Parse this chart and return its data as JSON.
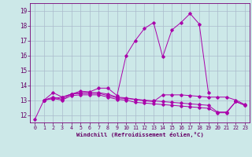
{
  "title": "",
  "xlabel": "Windchill (Refroidissement éolien,°C)",
  "ylabel": "",
  "bg_color": "#cce8e8",
  "line_color": "#aa00aa",
  "grid_color": "#aabbcc",
  "xlim": [
    -0.5,
    23.5
  ],
  "ylim": [
    11.5,
    19.5
  ],
  "xticks": [
    0,
    1,
    2,
    3,
    4,
    5,
    6,
    7,
    8,
    9,
    10,
    11,
    12,
    13,
    14,
    15,
    16,
    17,
    18,
    19,
    20,
    21,
    22,
    23
  ],
  "yticks": [
    12,
    13,
    14,
    15,
    16,
    17,
    18,
    19
  ],
  "lines": [
    {
      "x": [
        0,
        1,
        2,
        3,
        4,
        5,
        6,
        7,
        8,
        9,
        10,
        11,
        12,
        13,
        14,
        15,
        16,
        17,
        18,
        19,
        20,
        21,
        22,
        23
      ],
      "y": [
        11.7,
        13.0,
        13.5,
        13.2,
        13.4,
        13.6,
        13.55,
        13.8,
        13.8,
        13.3,
        16.0,
        17.0,
        17.8,
        18.2,
        15.9,
        17.7,
        18.2,
        18.8,
        18.1,
        13.5,
        null,
        null,
        null,
        null
      ]
    },
    {
      "x": [
        1,
        2,
        3,
        4,
        5,
        6,
        7,
        8,
        9,
        10,
        11,
        12,
        13,
        14,
        15,
        16,
        17,
        18,
        19,
        20,
        21,
        22,
        23
      ],
      "y": [
        13.0,
        13.1,
        13.0,
        13.3,
        13.35,
        13.35,
        13.35,
        13.2,
        13.05,
        13.0,
        12.85,
        12.8,
        12.75,
        12.7,
        12.65,
        12.6,
        12.55,
        12.5,
        12.45,
        12.15,
        12.15,
        12.9,
        12.65
      ]
    },
    {
      "x": [
        1,
        2,
        3,
        4,
        5,
        6,
        7,
        8,
        9,
        10,
        11,
        12,
        13,
        14,
        15,
        16,
        17,
        18,
        19,
        20,
        21,
        22,
        23
      ],
      "y": [
        13.0,
        13.1,
        13.2,
        13.4,
        13.45,
        13.45,
        13.45,
        13.3,
        13.15,
        13.1,
        13.05,
        12.95,
        12.9,
        13.35,
        13.35,
        13.35,
        13.3,
        13.25,
        13.2,
        13.2,
        13.2,
        13.0,
        12.7
      ]
    },
    {
      "x": [
        1,
        2,
        3,
        4,
        5,
        6,
        7,
        8,
        9,
        10,
        11,
        12,
        13,
        14,
        15,
        16,
        17,
        18,
        19,
        20,
        21,
        22,
        23
      ],
      "y": [
        13.0,
        13.2,
        13.05,
        13.4,
        13.5,
        13.5,
        13.5,
        13.4,
        13.2,
        13.15,
        13.05,
        13.0,
        12.95,
        12.9,
        12.85,
        12.8,
        12.75,
        12.7,
        12.65,
        12.2,
        12.2,
        12.9,
        12.65
      ]
    }
  ]
}
